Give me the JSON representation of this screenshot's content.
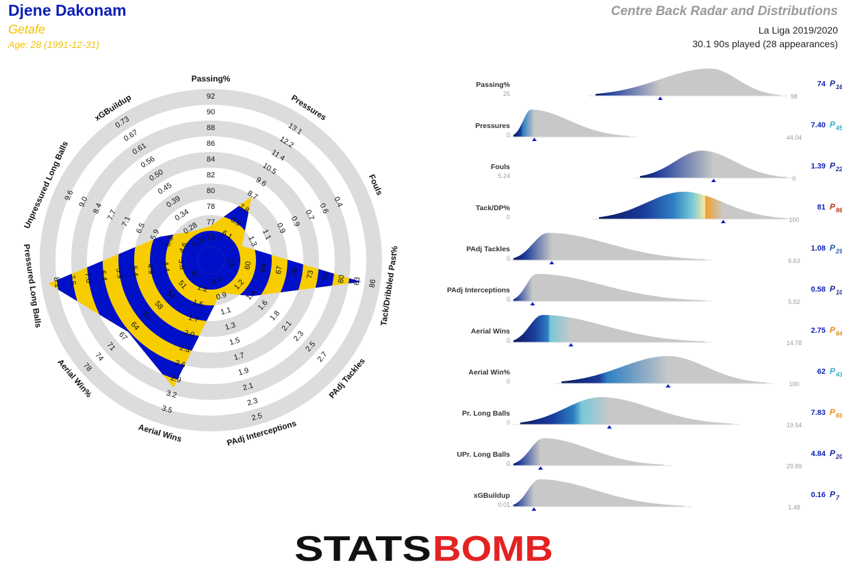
{
  "header": {
    "player_name": "Djene Dakonam",
    "team": "Getafe",
    "age": "Age: 28 (1991-12-31)",
    "title": "Centre Back Radar and Distributions",
    "league": "La Liga 2019/2020",
    "minutes": "30.1 90s played (28 appearances)"
  },
  "colors": {
    "player_name": "#0b1eb7",
    "team": "#f2c200",
    "radar_blue": "#0010c8",
    "radar_yellow": "#f7cd00",
    "ring_grey": "#dcdcdc",
    "dist_grey": "#c8c8c8",
    "logo_black": "#111111",
    "logo_red": "#e32222"
  },
  "logo": {
    "text_black": "STATS",
    "text_red": "BOMB"
  },
  "chart_data": [
    {
      "type": "radar",
      "axes": [
        {
          "label": "Passing%",
          "ticks": [
            "75",
            "77",
            "78",
            "80",
            "82",
            "84",
            "86",
            "88",
            "90",
            "92"
          ],
          "value": 74,
          "min": 74,
          "max": 92,
          "norm": 0.0
        },
        {
          "label": "Pressures",
          "ticks": [
            "6.1",
            "6.9",
            "7.8",
            "8.7",
            "9.6",
            "10.5",
            "11.4",
            "12.2",
            "13.1"
          ],
          "value": 7.4,
          "min": 5.3,
          "max": 13.1,
          "norm": 0.3
        },
        {
          "label": "Fouls",
          "ticks": [
            "1.3",
            "1.1",
            "0.9",
            "0.9",
            "0.7",
            "0.6",
            "0.4"
          ],
          "value": 1.39,
          "min": 1.5,
          "max": 0.4,
          "norm": 0.0
        },
        {
          "label": "Tack/Dribbled Past%",
          "ticks": [
            "57",
            "60",
            "64",
            "67",
            "70",
            "73",
            "76",
            "80",
            "83",
            "86"
          ],
          "value": 81,
          "min": 53,
          "max": 86,
          "norm": 0.86
        },
        {
          "label": "PAdj Tackles",
          "ticks": [
            "1.2",
            "1.4",
            "1.6",
            "1.8",
            "2.1",
            "2.3",
            "2.5",
            "2.7"
          ],
          "value": 1.08,
          "min": 0.8,
          "max": 2.7,
          "norm": 0.15
        },
        {
          "label": "PAdj Interceptions",
          "ticks": [
            "0.7",
            "0.9",
            "1.1",
            "1.3",
            "1.5",
            "1.7",
            "1.9",
            "2.1",
            "2.3",
            "2.5"
          ],
          "value": 0.58,
          "min": 0.6,
          "max": 2.5,
          "norm": 0.0
        },
        {
          "label": "Aerial Wins",
          "ticks": [
            "1.2",
            "1.5",
            "1.7",
            "2.0",
            "2.3",
            "2.6",
            "2.9",
            "3.2",
            "3.5"
          ],
          "value": 2.75,
          "min": 0.9,
          "max": 3.5,
          "norm": 0.72
        },
        {
          "label": "Aerial Win%",
          "ticks": [
            "47",
            "51",
            "54",
            "58",
            "61",
            "64",
            "67",
            "71",
            "74",
            "78"
          ],
          "value": 62,
          "min": 43,
          "max": 78,
          "norm": 0.55
        },
        {
          "label": "Pressured Long Balls",
          "ticks": [
            "3.8",
            "4.4",
            "4.9",
            "5.4",
            "5.9",
            "6.4",
            "7.0",
            "7.5",
            "8.1"
          ],
          "value": 7.83,
          "min": 3.2,
          "max": 8.1,
          "norm": 0.95
        },
        {
          "label": "Unpressured Long Balls",
          "ticks": [
            "4.6",
            "5.3",
            "5.9",
            "6.5",
            "7.1",
            "7.7",
            "8.4",
            "9.0",
            "9.6"
          ],
          "value": 4.84,
          "min": 3.9,
          "max": 9.6,
          "norm": 0.16
        },
        {
          "label": "xGBuildup",
          "ticks": [
            "0.22",
            "0.28",
            "0.34",
            "0.39",
            "0.45",
            "0.50",
            "0.56",
            "0.61",
            "0.67",
            "0.73"
          ],
          "value": 0.16,
          "min": 0.17,
          "max": 0.73,
          "norm": 0.0
        }
      ]
    },
    {
      "type": "distribution",
      "rows": [
        {
          "label": "Passing%",
          "min_label": "25",
          "max_label": "98",
          "value": "74",
          "percentile": "16",
          "pct_color": "#1a2a9c"
        },
        {
          "label": "Pressures",
          "min_label": "0",
          "max_label": "44.04",
          "value": "7.40",
          "percentile": "45",
          "pct_color": "#2ab0c8"
        },
        {
          "label": "Fouls",
          "min_label": "5.24",
          "max_label": "0",
          "value": "1.39",
          "percentile": "22",
          "pct_color": "#1a2a9c"
        },
        {
          "label": "Tack/DP%",
          "min_label": "0",
          "max_label": "100",
          "value": "81",
          "percentile": "86",
          "pct_color": "#c0361a"
        },
        {
          "label": "PAdj Tackles",
          "min_label": "0",
          "max_label": "6.63",
          "value": "1.08",
          "percentile": "29",
          "pct_color": "#1e5fa5"
        },
        {
          "label": "PAdj Interceptions",
          "min_label": "0",
          "max_label": "5.52",
          "value": "0.58",
          "percentile": "10",
          "pct_color": "#1a2a9c"
        },
        {
          "label": "Aerial Wins",
          "min_label": "0",
          "max_label": "14.78",
          "value": "2.75",
          "percentile": "64",
          "pct_color": "#e88a10"
        },
        {
          "label": "Aerial Win%",
          "min_label": "0",
          "max_label": "100",
          "value": "62",
          "percentile": "43",
          "pct_color": "#2ab0c8"
        },
        {
          "label": "Pr. Long Balls",
          "min_label": "0",
          "max_label": "19.54",
          "value": "7.83",
          "percentile": "69",
          "pct_color": "#e88a10"
        },
        {
          "label": "UPr. Long Balls",
          "min_label": "0",
          "max_label": "29.89",
          "value": "4.84",
          "percentile": "20",
          "pct_color": "#1a2a9c"
        },
        {
          "label": "xGBuildup",
          "min_label": "0.01",
          "max_label": "1.48",
          "value": "0.16",
          "percentile": "7",
          "pct_color": "#1a2a9c"
        }
      ]
    }
  ]
}
